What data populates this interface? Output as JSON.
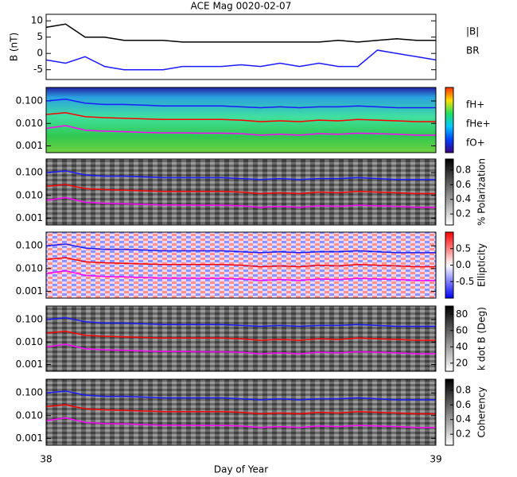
{
  "chart_data": [
    {
      "type": "line",
      "title": "ACE Mag 0020-02-07",
      "ylabel": "B (nT)",
      "x": [
        38,
        38.05,
        38.1,
        38.15,
        38.2,
        38.25,
        38.3,
        38.35,
        38.4,
        38.45,
        38.5,
        38.55,
        38.6,
        38.65,
        38.7,
        38.75,
        38.8,
        38.85,
        38.9,
        38.95,
        39
      ],
      "xlim": [
        38,
        39
      ],
      "ylim": [
        -8,
        12
      ],
      "yticks": [
        -5,
        0,
        5,
        10
      ],
      "legend": "right",
      "series": [
        {
          "name": "|B|",
          "color": "#000000",
          "values": [
            8,
            9,
            5,
            5,
            4,
            4,
            4,
            3.5,
            3.5,
            3.5,
            3.5,
            3.5,
            3.5,
            3.5,
            3.5,
            4,
            3.5,
            4,
            4.5,
            4,
            4
          ]
        },
        {
          "name": "BR",
          "color": "#1a1aff",
          "values": [
            -2,
            -3,
            -1,
            -4,
            -5,
            -5,
            -5,
            -4,
            -4,
            -4,
            -3.5,
            -4,
            -3,
            -4,
            -3,
            -4,
            -4,
            1,
            0,
            -1,
            -2
          ]
        }
      ]
    },
    {
      "type": "spectrogram",
      "colormap": "rainbow",
      "ylog": true,
      "legend": "right",
      "x": [
        38,
        38.05,
        38.1,
        38.15,
        38.2,
        38.25,
        38.3,
        38.35,
        38.4,
        38.45,
        38.5,
        38.55,
        38.6,
        38.65,
        38.7,
        38.75,
        38.8,
        38.85,
        38.9,
        38.95,
        39
      ],
      "xlim": [
        38,
        39
      ],
      "ylim": [
        0.0005,
        0.4
      ],
      "yticks": [
        0.001,
        {
          "value": 0.01,
          "label": "0.010"
        },
        {
          "value": 0.1,
          "label": "0.100"
        }
      ],
      "series": [
        {
          "name": "fH+",
          "color": "#1a1aff",
          "values": [
            0.1,
            0.12,
            0.08,
            0.07,
            0.07,
            0.065,
            0.06,
            0.06,
            0.06,
            0.06,
            0.055,
            0.05,
            0.055,
            0.05,
            0.055,
            0.055,
            0.06,
            0.055,
            0.05,
            0.05,
            0.05
          ]
        },
        {
          "name": "fHe+",
          "color": "#ff0000",
          "values": [
            0.025,
            0.03,
            0.02,
            0.018,
            0.017,
            0.016,
            0.015,
            0.015,
            0.015,
            0.015,
            0.014,
            0.012,
            0.013,
            0.012,
            0.014,
            0.013,
            0.015,
            0.014,
            0.013,
            0.012,
            0.012
          ]
        },
        {
          "name": "fO+",
          "color": "#ff00ff",
          "values": [
            0.006,
            0.008,
            0.005,
            0.0045,
            0.0043,
            0.004,
            0.0038,
            0.0038,
            0.0037,
            0.0037,
            0.0035,
            0.003,
            0.0033,
            0.003,
            0.0035,
            0.0033,
            0.0037,
            0.0035,
            0.0033,
            0.003,
            0.003
          ]
        }
      ]
    },
    {
      "type": "spectrogram",
      "colormap": "gray",
      "ylog": true,
      "colorbar": {
        "label": "% Polarization",
        "lim": [
          0.05,
          0.95
        ],
        "ticks": [
          0.2,
          0.4,
          0.6,
          0.8
        ]
      },
      "x": [
        38,
        38.05,
        38.1,
        38.15,
        38.2,
        38.25,
        38.3,
        38.35,
        38.4,
        38.45,
        38.5,
        38.55,
        38.6,
        38.65,
        38.7,
        38.75,
        38.8,
        38.85,
        38.9,
        38.95,
        39
      ],
      "xlim": [
        38,
        39
      ],
      "ylim": [
        0.0005,
        0.4
      ],
      "yticks": [
        0.001,
        {
          "value": 0.01,
          "label": "0.010"
        },
        {
          "value": 0.1,
          "label": "0.100"
        }
      ],
      "series": [
        {
          "color": "#1a1aff",
          "values": [
            0.1,
            0.12,
            0.08,
            0.07,
            0.07,
            0.065,
            0.06,
            0.06,
            0.06,
            0.06,
            0.055,
            0.05,
            0.055,
            0.05,
            0.055,
            0.055,
            0.06,
            0.055,
            0.05,
            0.05,
            0.05
          ]
        },
        {
          "color": "#ff0000",
          "values": [
            0.025,
            0.03,
            0.02,
            0.018,
            0.017,
            0.016,
            0.015,
            0.015,
            0.015,
            0.015,
            0.014,
            0.012,
            0.013,
            0.012,
            0.014,
            0.013,
            0.015,
            0.014,
            0.013,
            0.012,
            0.012
          ]
        },
        {
          "color": "#ff00ff",
          "values": [
            0.006,
            0.008,
            0.005,
            0.0045,
            0.0043,
            0.004,
            0.0038,
            0.0038,
            0.0037,
            0.0037,
            0.0035,
            0.003,
            0.0033,
            0.003,
            0.0035,
            0.0033,
            0.0037,
            0.0035,
            0.0033,
            0.003,
            0.003
          ]
        }
      ]
    },
    {
      "type": "spectrogram",
      "colormap": "bwr",
      "ylog": true,
      "colorbar": {
        "label": "Ellipticity",
        "lim": [
          -1,
          1
        ],
        "ticks": [
          -0.5,
          {
            "value": 0,
            "label": "0.0"
          },
          0.5
        ]
      },
      "x": [
        38,
        38.05,
        38.1,
        38.15,
        38.2,
        38.25,
        38.3,
        38.35,
        38.4,
        38.45,
        38.5,
        38.55,
        38.6,
        38.65,
        38.7,
        38.75,
        38.8,
        38.85,
        38.9,
        38.95,
        39
      ],
      "xlim": [
        38,
        39
      ],
      "ylim": [
        0.0005,
        0.4
      ],
      "yticks": [
        0.001,
        {
          "value": 0.01,
          "label": "0.010"
        },
        {
          "value": 0.1,
          "label": "0.100"
        }
      ],
      "series": [
        {
          "color": "#1a1aff",
          "values": [
            0.1,
            0.12,
            0.08,
            0.07,
            0.07,
            0.065,
            0.06,
            0.06,
            0.06,
            0.06,
            0.055,
            0.05,
            0.055,
            0.05,
            0.055,
            0.055,
            0.06,
            0.055,
            0.05,
            0.05,
            0.05
          ]
        },
        {
          "color": "#ff0000",
          "values": [
            0.025,
            0.03,
            0.02,
            0.018,
            0.017,
            0.016,
            0.015,
            0.015,
            0.015,
            0.015,
            0.014,
            0.012,
            0.013,
            0.012,
            0.014,
            0.013,
            0.015,
            0.014,
            0.013,
            0.012,
            0.012
          ]
        },
        {
          "color": "#ff00ff",
          "values": [
            0.006,
            0.008,
            0.005,
            0.0045,
            0.0043,
            0.004,
            0.0038,
            0.0038,
            0.0037,
            0.0037,
            0.0035,
            0.003,
            0.0033,
            0.003,
            0.0035,
            0.0033,
            0.0037,
            0.0035,
            0.0033,
            0.003,
            0.003
          ]
        }
      ]
    },
    {
      "type": "spectrogram",
      "colormap": "gray",
      "ylog": true,
      "colorbar": {
        "label": "k dot B (Deg)",
        "lim": [
          10,
          90
        ],
        "ticks": [
          20,
          40,
          60,
          80
        ]
      },
      "x": [
        38,
        38.05,
        38.1,
        38.15,
        38.2,
        38.25,
        38.3,
        38.35,
        38.4,
        38.45,
        38.5,
        38.55,
        38.6,
        38.65,
        38.7,
        38.75,
        38.8,
        38.85,
        38.9,
        38.95,
        39
      ],
      "xlim": [
        38,
        39
      ],
      "ylim": [
        0.0005,
        0.4
      ],
      "yticks": [
        0.001,
        {
          "value": 0.01,
          "label": "0.010"
        },
        {
          "value": 0.1,
          "label": "0.100"
        }
      ],
      "series": [
        {
          "color": "#1a1aff",
          "values": [
            0.1,
            0.12,
            0.08,
            0.07,
            0.07,
            0.065,
            0.06,
            0.06,
            0.06,
            0.06,
            0.055,
            0.05,
            0.055,
            0.05,
            0.055,
            0.055,
            0.06,
            0.055,
            0.05,
            0.05,
            0.05
          ]
        },
        {
          "color": "#ff0000",
          "values": [
            0.025,
            0.03,
            0.02,
            0.018,
            0.017,
            0.016,
            0.015,
            0.015,
            0.015,
            0.015,
            0.014,
            0.012,
            0.013,
            0.012,
            0.014,
            0.013,
            0.015,
            0.014,
            0.013,
            0.012,
            0.012
          ]
        },
        {
          "color": "#ff00ff",
          "values": [
            0.006,
            0.008,
            0.005,
            0.0045,
            0.0043,
            0.004,
            0.0038,
            0.0038,
            0.0037,
            0.0037,
            0.0035,
            0.003,
            0.0033,
            0.003,
            0.0035,
            0.0033,
            0.0037,
            0.0035,
            0.0033,
            0.003,
            0.003
          ]
        }
      ]
    },
    {
      "type": "spectrogram",
      "colormap": "gray",
      "ylog": true,
      "colorbar": {
        "label": "Coherency",
        "lim": [
          0.05,
          0.95
        ],
        "ticks": [
          0.2,
          0.4,
          0.6,
          0.8
        ]
      },
      "xlabel": "Day of Year",
      "xticks": [
        38,
        39
      ],
      "x": [
        38,
        38.05,
        38.1,
        38.15,
        38.2,
        38.25,
        38.3,
        38.35,
        38.4,
        38.45,
        38.5,
        38.55,
        38.6,
        38.65,
        38.7,
        38.75,
        38.8,
        38.85,
        38.9,
        38.95,
        39
      ],
      "xlim": [
        38,
        39
      ],
      "ylim": [
        0.0005,
        0.4
      ],
      "yticks": [
        0.001,
        {
          "value": 0.01,
          "label": "0.010"
        },
        {
          "value": 0.1,
          "label": "0.100"
        }
      ],
      "series": [
        {
          "color": "#1a1aff",
          "values": [
            0.1,
            0.12,
            0.08,
            0.07,
            0.07,
            0.065,
            0.06,
            0.06,
            0.06,
            0.06,
            0.055,
            0.05,
            0.055,
            0.05,
            0.055,
            0.055,
            0.06,
            0.055,
            0.05,
            0.05,
            0.05
          ]
        },
        {
          "color": "#ff0000",
          "values": [
            0.025,
            0.03,
            0.02,
            0.018,
            0.017,
            0.016,
            0.015,
            0.015,
            0.015,
            0.015,
            0.014,
            0.012,
            0.013,
            0.012,
            0.014,
            0.013,
            0.015,
            0.014,
            0.013,
            0.012,
            0.012
          ]
        },
        {
          "color": "#ff00ff",
          "values": [
            0.006,
            0.008,
            0.005,
            0.0045,
            0.0043,
            0.004,
            0.0038,
            0.0038,
            0.0037,
            0.0037,
            0.0035,
            0.003,
            0.0033,
            0.003,
            0.0035,
            0.0033,
            0.0037,
            0.0035,
            0.0033,
            0.003,
            0.003
          ]
        }
      ]
    }
  ]
}
